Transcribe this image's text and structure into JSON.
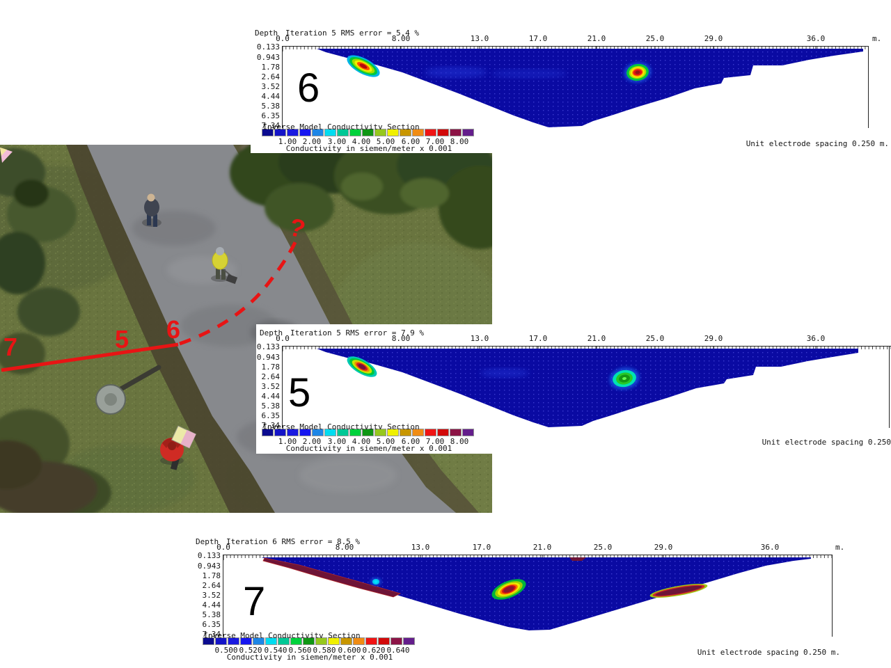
{
  "sections": [
    {
      "numeral": "6",
      "depth_label": "Depth",
      "title": "Iteration 5 RMS error = 5.4 %",
      "x_ticks": [
        "0.0",
        "8.00",
        "13.0",
        "17.0",
        "21.0",
        "25.0",
        "29.0",
        "36.0"
      ],
      "x_unit": "m.",
      "depth_ticks": [
        "0.133",
        "0.943",
        "1.78",
        "2.64",
        "3.52",
        "4.44",
        "5.38",
        "6.35",
        "7.34"
      ],
      "legend_title": "Inverse Model Conductivity Section",
      "legend_values": [
        "1.00",
        "2.00",
        "3.00",
        "4.00",
        "5.00",
        "6.00",
        "7.00",
        "8.00"
      ],
      "legend_caption": "Conductivity in siemen/meter x 0.001",
      "unit_note": "Unit electrode spacing 0.250 m."
    },
    {
      "numeral": "5",
      "depth_label": "Depth",
      "title": "Iteration 5 RMS error = 7.9 %",
      "x_ticks": [
        "0.0",
        "8.00",
        "13.0",
        "17.0",
        "21.0",
        "25.0",
        "29.0",
        "36.0"
      ],
      "x_unit": "",
      "depth_ticks": [
        "0.133",
        "0.943",
        "1.78",
        "2.64",
        "3.52",
        "4.44",
        "5.38",
        "6.35",
        "7.34"
      ],
      "legend_title": "Inverse Model Conductivity Section",
      "legend_values": [
        "1.00",
        "2.00",
        "3.00",
        "4.00",
        "5.00",
        "6.00",
        "7.00",
        "8.00"
      ],
      "legend_caption": "Conductivity in siemen/meter x 0.001",
      "unit_note": "Unit electrode spacing 0.250"
    },
    {
      "numeral": "7",
      "depth_label": "Depth",
      "title": "Iteration 6 RMS error = 8.5 %",
      "x_ticks": [
        "0.0",
        "8.00",
        "13.0",
        "17.0",
        "21.0",
        "25.0",
        "29.0",
        "36.0"
      ],
      "x_unit": "m.",
      "depth_ticks": [
        "0.133",
        "0.943",
        "1.78",
        "2.64",
        "3.52",
        "4.44",
        "5.38",
        "6.35",
        "7.34"
      ],
      "legend_title": "Inverse Model Conductivity Section",
      "legend_values": [
        "0.500",
        "0.520",
        "0.540",
        "0.560",
        "0.580",
        "0.600",
        "0.620",
        "0.640"
      ],
      "legend_caption": "Conductivity in siemen/meter x 0.001",
      "unit_note": "Unit electrode spacing 0.250 m."
    }
  ],
  "photo": {
    "survey_labels": {
      "seven": "7",
      "five": "5",
      "six": "6",
      "unknown": "?"
    }
  },
  "colors": {
    "palette": [
      "#0b0b8f",
      "#1414c8",
      "#1a1ae0",
      "#1616f0",
      "#1e86e6",
      "#00dcf0",
      "#00c896",
      "#00d23c",
      "#0f9614",
      "#96c81e",
      "#f0f000",
      "#c89600",
      "#f08c14",
      "#f01414",
      "#d20a0a",
      "#8c1446",
      "#641e8c"
    ],
    "body_blue": "#0a0aa2",
    "annotation_red": "#e81414"
  },
  "chart_data": [
    {
      "type": "heatmap",
      "section_label": "6",
      "title": "Iteration 5 RMS error = 5.4 %",
      "x_ticks": [
        0.0,
        8.0,
        13.0,
        17.0,
        21.0,
        25.0,
        29.0,
        36.0
      ],
      "x_range_m": [
        0,
        40
      ],
      "x_unit": "m.",
      "depth_ticks_m": [
        0.133,
        0.943,
        1.78,
        2.64,
        3.52,
        4.44,
        5.38,
        6.35,
        7.34
      ],
      "colorbar_title": "Inverse Model Conductivity Section",
      "colorbar_values": [
        1.0,
        2.0,
        3.0,
        4.0,
        5.0,
        6.0,
        7.0,
        8.0
      ],
      "colorbar_unit": "Conductivity in siemen/meter x 0.001",
      "electrode_spacing_note": "Unit electrode spacing 0.250 m.",
      "background_value": "1-2 (dark blue)",
      "anomalies": [
        {
          "x_m": 5,
          "depth_m": 1.2,
          "description": "shallow elongated conductive anomaly, red-orange core with yellow/green rim"
        },
        {
          "x_m": 14,
          "depth_m": 1.5,
          "description": "faint light-blue diffuse zone"
        },
        {
          "x_m": 24,
          "depth_m": 1.5,
          "description": "oval conductive anomaly, dark-red core, red/yellow/green rings"
        }
      ]
    },
    {
      "type": "heatmap",
      "section_label": "5",
      "title": "Iteration 5 RMS error = 7.9 %",
      "x_ticks": [
        0.0,
        8.0,
        13.0,
        17.0,
        21.0,
        25.0,
        29.0,
        36.0
      ],
      "x_range_m": [
        0,
        41
      ],
      "x_unit": "",
      "depth_ticks_m": [
        0.133,
        0.943,
        1.78,
        2.64,
        3.52,
        4.44,
        5.38,
        6.35,
        7.34
      ],
      "colorbar_title": "Inverse Model Conductivity Section",
      "colorbar_values": [
        1.0,
        2.0,
        3.0,
        4.0,
        5.0,
        6.0,
        7.0,
        8.0
      ],
      "colorbar_unit": "Conductivity in siemen/meter x 0.001",
      "electrode_spacing_note": "Unit electrode spacing 0.250",
      "background_value": "1-2 (dark blue)",
      "anomalies": [
        {
          "x_m": 5,
          "depth_m": 1.2,
          "description": "shallow elongated anomaly, maroon/red core with green-yellow fringe"
        },
        {
          "x_m": 15,
          "depth_m": 1.5,
          "description": "faint light-blue diffuse zone"
        },
        {
          "x_m": 23,
          "depth_m": 2.0,
          "description": "oval anomaly, cyan/green rings with bright green core"
        }
      ]
    },
    {
      "type": "heatmap",
      "section_label": "7",
      "title": "Iteration 6 RMS error = 8.5 %",
      "x_ticks": [
        0.0,
        8.0,
        13.0,
        17.0,
        21.0,
        25.0,
        29.0,
        36.0
      ],
      "x_range_m": [
        0,
        40
      ],
      "x_unit": "m.",
      "depth_ticks_m": [
        0.133,
        0.943,
        1.78,
        2.64,
        3.52,
        4.44,
        5.38,
        6.35,
        7.34
      ],
      "colorbar_title": "Inverse Model Conductivity Section",
      "colorbar_values": [
        0.5,
        0.52,
        0.54,
        0.56,
        0.58,
        0.6,
        0.62,
        0.64
      ],
      "colorbar_unit": "Conductivity in siemen/meter x 0.001",
      "electrode_spacing_note": "Unit electrode spacing 0.250 m.",
      "background_value": "~0.50-0.52 (dark blue)",
      "anomalies": [
        {
          "x_m": 4,
          "depth_m": 0.8,
          "description": "maroon/purple streak along upper-left slope"
        },
        {
          "x_m": 10.5,
          "depth_m": 1.8,
          "description": "small cyan-blue spot"
        },
        {
          "x_m": 19,
          "depth_m": 2.5,
          "description": "large tilted oval, maroon core with red/yellow/green rings"
        },
        {
          "x_m": 30,
          "depth_m": 2.5,
          "description": "maroon streak with yellow-green fringe"
        }
      ]
    }
  ]
}
